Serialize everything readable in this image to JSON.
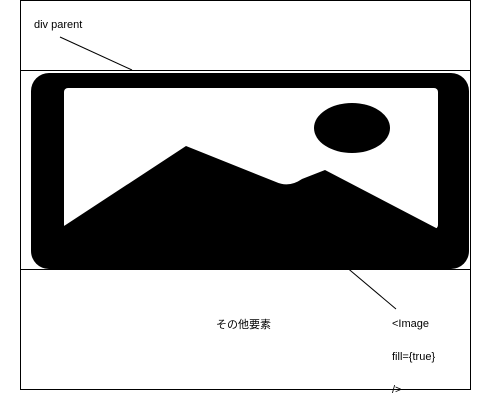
{
  "diagram": {
    "parent_label": "div parent",
    "other_elements_label": "その他要素",
    "image_component_label": [
      "<Image",
      "fill={true}",
      "/>"
    ],
    "icon_name": "image-placeholder-icon",
    "colors": {
      "line": "#000000",
      "background": "#ffffff"
    }
  }
}
